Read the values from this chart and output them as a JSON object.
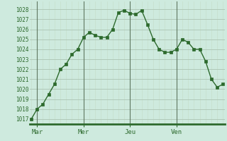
{
  "y_values": [
    1017,
    1018,
    1018.5,
    1019.5,
    1020.5,
    1022,
    1022.5,
    1023.5,
    1024,
    1025.2,
    1025.7,
    1025.4,
    1025.2,
    1025.2,
    1026,
    1027.7,
    1027.9,
    1027.6,
    1027.5,
    1027.9,
    1026.5,
    1025,
    1024,
    1023.7,
    1023.7,
    1024,
    1025,
    1024.7,
    1024,
    1024,
    1022.8,
    1021,
    1020.2,
    1020.5
  ],
  "x_tick_positions": [
    1,
    9,
    17,
    25
  ],
  "x_tick_labels": [
    "Mar",
    "Mer",
    "Jeu",
    "Ven"
  ],
  "ylim": [
    1016.5,
    1028.8
  ],
  "yticks": [
    1017,
    1018,
    1019,
    1020,
    1021,
    1022,
    1023,
    1024,
    1025,
    1026,
    1027,
    1028
  ],
  "line_color": "#2d6a2d",
  "marker_color": "#2d6a2d",
  "bg_color": "#ceeade",
  "grid_color_major": "#b0c8b8",
  "grid_color_minor": "#c4dcc8",
  "axis_color": "#2d6a2d",
  "tick_label_color": "#2d6a2d",
  "vline_color": "#607860",
  "vline_positions": [
    1,
    9,
    17,
    25
  ],
  "xlim": [
    -0.3,
    33.3
  ]
}
